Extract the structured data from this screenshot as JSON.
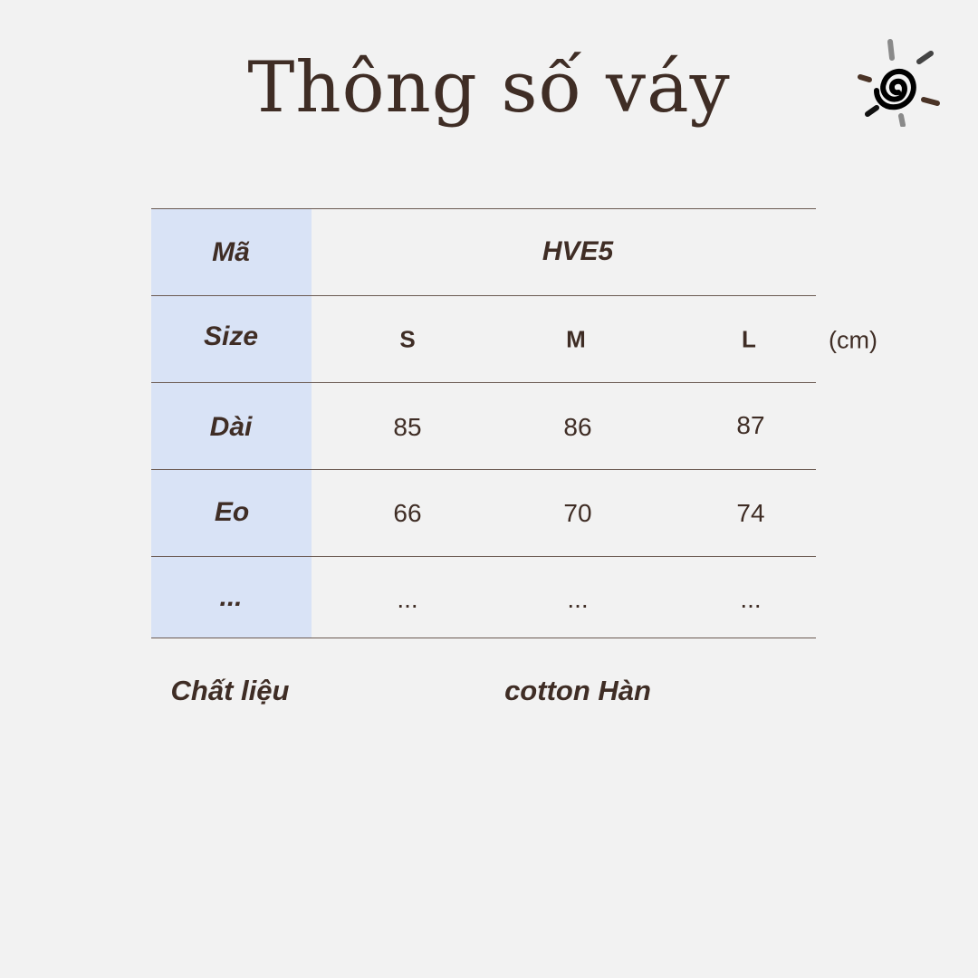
{
  "title": "Thông số váy",
  "logo": {
    "icon": "spiral-sun-icon"
  },
  "table": {
    "code_label": "Mã",
    "code_value": "HVE5",
    "size_label": "Size",
    "sizes": [
      "S",
      "M",
      "L"
    ],
    "unit": "(cm)",
    "rows": [
      {
        "label": "Dài",
        "values": [
          "85",
          "86",
          "87"
        ]
      },
      {
        "label": "Eo",
        "values": [
          "66",
          "70",
          "74"
        ]
      },
      {
        "label": "...",
        "values": [
          "...",
          "...",
          "..."
        ]
      }
    ]
  },
  "material": {
    "label": "Chất liệu",
    "value": "cotton Hàn"
  },
  "colors": {
    "text": "#3f2d25",
    "label_bg": "#d9e3f6",
    "background": "#f2f2f2"
  }
}
